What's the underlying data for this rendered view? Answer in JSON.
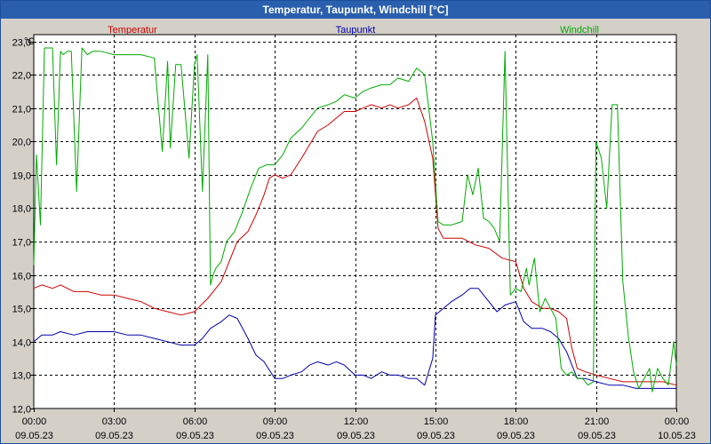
{
  "window": {
    "title": "Temperatur, Taupunkt, Windchill [°C]"
  },
  "chart_data": {
    "type": "line",
    "title": "Temperatur, Taupunkt, Windchill [°C]",
    "ylabel": "°C",
    "xlabel": "",
    "ylim": [
      12.0,
      23.2
    ],
    "xlim": [
      0,
      24
    ],
    "yticks": [
      12.0,
      13.0,
      14.0,
      15.0,
      16.0,
      17.0,
      18.0,
      19.0,
      20.0,
      21.0,
      22.0,
      23.0
    ],
    "ytick_labels": [
      "12,0",
      "13,0",
      "14,0",
      "15,0",
      "16,0",
      "17,0",
      "18,0",
      "19,0",
      "20,0",
      "21,0",
      "22,0",
      "23,0"
    ],
    "xticks": [
      {
        "hour": 0,
        "time": "00:00",
        "date": "09.05.23"
      },
      {
        "hour": 3,
        "time": "03:00",
        "date": "09.05.23"
      },
      {
        "hour": 6,
        "time": "06:00",
        "date": "09.05.23"
      },
      {
        "hour": 9,
        "time": "09:00",
        "date": "09.05.23"
      },
      {
        "hour": 12,
        "time": "12:00",
        "date": "09.05.23"
      },
      {
        "hour": 15,
        "time": "15:00",
        "date": "09.05.23"
      },
      {
        "hour": 18,
        "time": "18:00",
        "date": "09.05.23"
      },
      {
        "hour": 21,
        "time": "21:00",
        "date": "09.05.23"
      },
      {
        "hour": 24,
        "time": "00:00",
        "date": "10.05.23"
      }
    ],
    "grid": true,
    "series": [
      {
        "name": "Temperatur",
        "color": "#cc0000",
        "x": [
          0,
          0.3,
          0.7,
          1.0,
          1.5,
          2.0,
          2.5,
          3.0,
          3.5,
          4.0,
          4.5,
          5.0,
          5.5,
          6.0,
          6.5,
          7.0,
          7.3,
          7.6,
          8.0,
          8.3,
          8.6,
          8.8,
          9.0,
          9.3,
          9.6,
          10.0,
          10.3,
          10.6,
          11.0,
          11.3,
          11.6,
          12.0,
          12.3,
          12.6,
          13.0,
          13.3,
          13.6,
          14.0,
          14.3,
          14.6,
          14.9,
          15.1,
          15.3,
          15.6,
          16.0,
          16.5,
          17.0,
          17.5,
          18.0,
          18.3,
          18.6,
          19.0,
          19.3,
          19.6,
          19.9,
          20.1,
          20.3,
          20.6,
          21.0,
          21.5,
          22.0,
          22.5,
          23.0,
          23.5,
          24.0
        ],
        "values": [
          15.6,
          15.7,
          15.6,
          15.7,
          15.5,
          15.5,
          15.4,
          15.4,
          15.3,
          15.2,
          15.0,
          14.9,
          14.8,
          14.9,
          15.3,
          15.8,
          16.4,
          17.0,
          17.3,
          17.8,
          18.4,
          18.9,
          19.0,
          18.9,
          19.0,
          19.5,
          19.9,
          20.3,
          20.5,
          20.7,
          20.9,
          20.9,
          21.0,
          21.1,
          21.0,
          21.1,
          21.0,
          21.1,
          21.3,
          20.6,
          19.5,
          17.4,
          17.1,
          17.1,
          17.1,
          16.9,
          16.8,
          16.5,
          16.4,
          15.6,
          15.2,
          15.0,
          15.0,
          14.9,
          14.7,
          13.8,
          13.2,
          13.1,
          13.0,
          12.9,
          12.8,
          12.8,
          12.8,
          12.8,
          12.7
        ]
      },
      {
        "name": "Taupunkt",
        "color": "#0000aa",
        "x": [
          0,
          0.3,
          0.7,
          1.0,
          1.5,
          2.0,
          2.5,
          3.0,
          3.5,
          4.0,
          4.5,
          5.0,
          5.5,
          6.0,
          6.3,
          6.6,
          7.0,
          7.3,
          7.6,
          8.0,
          8.3,
          8.6,
          9.0,
          9.3,
          9.6,
          10.0,
          10.3,
          10.6,
          11.0,
          11.3,
          11.6,
          12.0,
          12.3,
          12.6,
          13.0,
          13.3,
          13.6,
          14.0,
          14.3,
          14.6,
          14.9,
          15.0,
          15.3,
          15.6,
          16.0,
          16.3,
          16.6,
          17.0,
          17.3,
          17.6,
          18.0,
          18.3,
          18.6,
          19.0,
          19.3,
          19.6,
          19.9,
          20.1,
          20.3,
          20.6,
          21.0,
          21.5,
          22.0,
          22.5,
          23.0,
          23.5,
          24.0
        ],
        "values": [
          14.0,
          14.2,
          14.2,
          14.3,
          14.2,
          14.3,
          14.3,
          14.3,
          14.2,
          14.2,
          14.1,
          14.0,
          13.9,
          13.9,
          14.1,
          14.4,
          14.6,
          14.8,
          14.7,
          14.1,
          13.6,
          13.4,
          12.9,
          12.9,
          13.0,
          13.1,
          13.3,
          13.4,
          13.3,
          13.4,
          13.3,
          13.0,
          13.0,
          12.9,
          13.1,
          13.0,
          13.0,
          12.9,
          12.9,
          12.7,
          13.5,
          14.8,
          15.0,
          15.2,
          15.4,
          15.6,
          15.6,
          15.2,
          14.9,
          15.1,
          15.2,
          14.6,
          14.4,
          14.4,
          14.3,
          14.1,
          13.7,
          13.3,
          12.9,
          12.9,
          12.8,
          12.7,
          12.7,
          12.6,
          12.6,
          12.6,
          12.6
        ]
      },
      {
        "name": "Windchill",
        "color": "#00aa00",
        "x": [
          0,
          0.1,
          0.25,
          0.4,
          0.55,
          0.7,
          0.85,
          1.0,
          1.1,
          1.25,
          1.4,
          1.6,
          1.8,
          2.0,
          2.2,
          2.5,
          3.0,
          3.5,
          4.0,
          4.5,
          4.8,
          5.0,
          5.1,
          5.3,
          5.5,
          5.8,
          6.0,
          6.1,
          6.3,
          6.5,
          6.6,
          6.7,
          6.8,
          6.9,
          7.0,
          7.2,
          7.5,
          7.8,
          8.1,
          8.4,
          8.7,
          9.0,
          9.3,
          9.6,
          10.0,
          10.3,
          10.6,
          11.0,
          11.3,
          11.6,
          12.0,
          12.3,
          12.6,
          13.0,
          13.3,
          13.6,
          14.0,
          14.3,
          14.6,
          14.9,
          15.1,
          15.3,
          15.6,
          16.0,
          16.2,
          16.4,
          16.6,
          16.8,
          17.0,
          17.2,
          17.4,
          17.6,
          17.8,
          18.0,
          18.2,
          18.4,
          18.5,
          18.7,
          18.9,
          19.1,
          19.3,
          19.5,
          19.7,
          19.9,
          20.1,
          20.3,
          20.5,
          20.7,
          20.9,
          21.0,
          21.2,
          21.4,
          21.6,
          21.8,
          22.0,
          22.2,
          22.4,
          22.6,
          22.8,
          23.0,
          23.1,
          23.3,
          23.5,
          23.7,
          23.9,
          24.0
        ],
        "values": [
          16.3,
          19.6,
          17.5,
          22.8,
          22.8,
          22.8,
          19.3,
          22.7,
          22.6,
          22.7,
          22.7,
          18.5,
          22.8,
          22.6,
          22.7,
          22.7,
          22.6,
          22.6,
          22.6,
          22.5,
          19.7,
          22.4,
          19.8,
          22.3,
          22.3,
          19.5,
          22.3,
          22.6,
          18.5,
          22.6,
          15.7,
          16.0,
          16.2,
          16.3,
          16.4,
          17.0,
          17.3,
          17.9,
          18.6,
          19.2,
          19.3,
          19.3,
          19.6,
          20.1,
          20.4,
          20.7,
          21.0,
          21.1,
          21.2,
          21.4,
          21.3,
          21.5,
          21.6,
          21.7,
          21.7,
          21.9,
          21.8,
          22.2,
          22.0,
          20.0,
          17.6,
          17.5,
          17.5,
          17.6,
          19.0,
          18.4,
          19.2,
          17.7,
          17.6,
          17.4,
          17.0,
          22.7,
          15.4,
          15.6,
          15.5,
          16.2,
          15.7,
          16.5,
          14.9,
          15.3,
          15.0,
          14.7,
          13.2,
          13.0,
          13.1,
          12.9,
          12.9,
          12.7,
          12.8,
          20.0,
          19.5,
          18.0,
          21.1,
          21.1,
          15.8,
          14.2,
          13.1,
          12.6,
          12.9,
          13.2,
          12.5,
          13.2,
          12.9,
          12.7,
          14.0,
          13.3
        ]
      }
    ]
  }
}
